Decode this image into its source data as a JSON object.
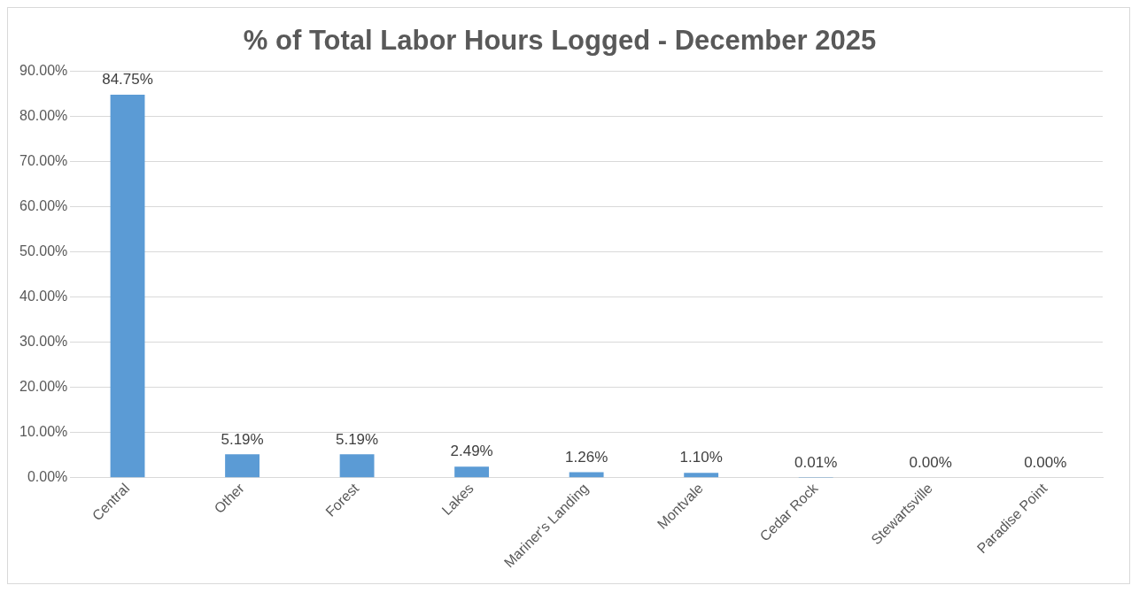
{
  "chart_data": {
    "type": "bar",
    "title": "% of Total Labor Hours Logged - December 2025",
    "categories": [
      "Central",
      "Other",
      "Forest",
      "Lakes",
      "Mariner's Landing",
      "Montvale",
      "Cedar Rock",
      "Stewartsville",
      "Paradise Point"
    ],
    "values": [
      84.75,
      5.19,
      5.19,
      2.49,
      1.26,
      1.1,
      0.01,
      0.0,
      0.0
    ],
    "value_labels": [
      "84.75%",
      "5.19%",
      "5.19%",
      "2.49%",
      "1.26%",
      "1.10%",
      "0.01%",
      "0.00%",
      "0.00%"
    ],
    "color": "#5b9bd5",
    "ylim": [
      0,
      90
    ],
    "yticks": [
      {
        "value": 0,
        "label": "0.00%"
      },
      {
        "value": 10,
        "label": "10.00%"
      },
      {
        "value": 20,
        "label": "20.00%"
      },
      {
        "value": 30,
        "label": "30.00%"
      },
      {
        "value": 40,
        "label": "40.00%"
      },
      {
        "value": 50,
        "label": "50.00%"
      },
      {
        "value": 60,
        "label": "60.00%"
      },
      {
        "value": 70,
        "label": "70.00%"
      },
      {
        "value": 80,
        "label": "80.00%"
      },
      {
        "value": 90,
        "label": "90.00%"
      }
    ],
    "grid": "y",
    "legend": false
  }
}
